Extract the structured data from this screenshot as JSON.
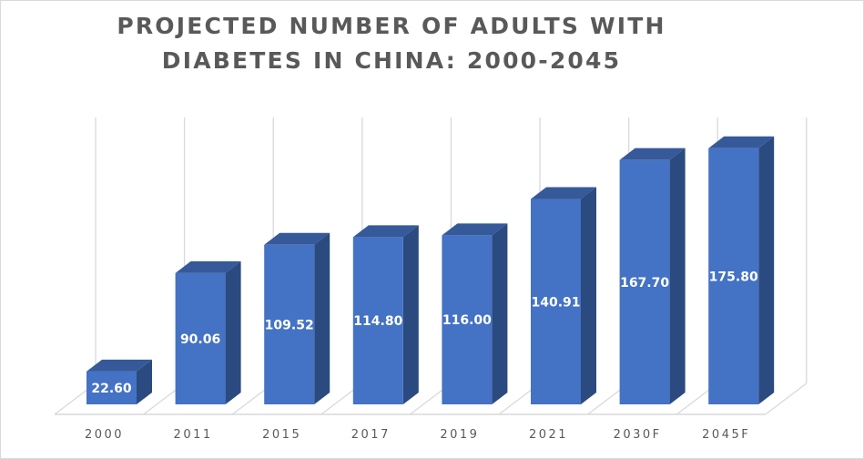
{
  "chart_data": {
    "type": "bar",
    "title": "PROJECTED NUMBER OF ADULTS WITH DIABETES IN CHINA: 2000-2045",
    "title_lines": [
      "PROJECTED NUMBER OF ADULTS WITH",
      "DIABETES IN CHINA: 2000-2045"
    ],
    "categories": [
      "2000",
      "2011",
      "2015",
      "2017",
      "2019",
      "2021",
      "2030F",
      "2045F"
    ],
    "values": [
      22.6,
      90.06,
      109.52,
      114.8,
      116.0,
      140.91,
      167.7,
      175.8
    ],
    "data_labels": [
      "22.60",
      "90.06",
      "109.52",
      "114.80",
      "116.00",
      "140.91",
      "167.70",
      "175.80"
    ],
    "xlabel": "",
    "ylabel": "",
    "style": "3d-column",
    "grid": "vertical",
    "legend": "none",
    "colors": {
      "front": "#4472c4",
      "side": "#2b4a80",
      "top": "#36599a",
      "grid": "#d9d9d9",
      "label": "#595959"
    }
  }
}
